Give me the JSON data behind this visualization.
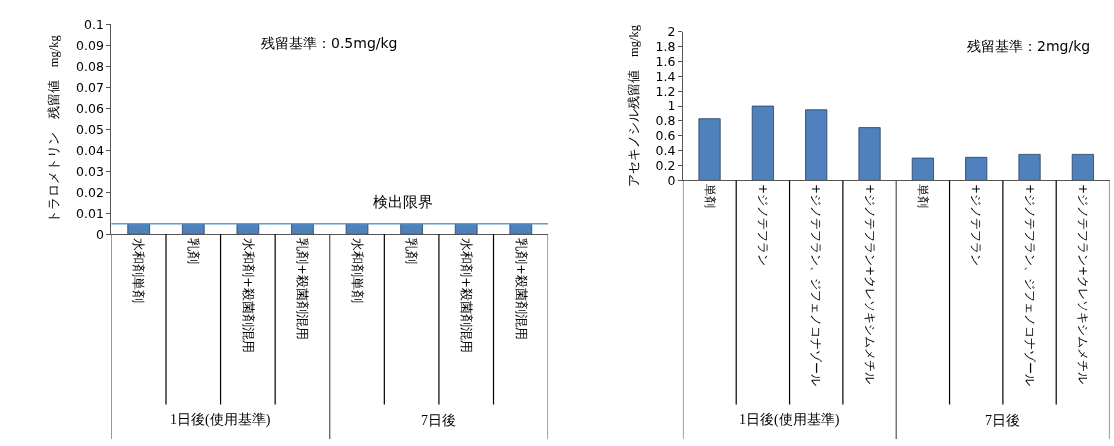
{
  "chart_data": [
    {
      "type": "bar",
      "ylabel": "トラロメトリン　残留値　mg/kg",
      "categories": [
        "水和剤単剤",
        "乳剤",
        "水和剤+殺菌剤混用",
        "乳剤+殺菌剤混用",
        "水和剤単剤",
        "乳剤",
        "水和剤+殺菌剤混用",
        "乳剤+殺菌剤混用"
      ],
      "values": [
        0.005,
        0.005,
        0.005,
        0.005,
        0.005,
        0.005,
        0.005,
        0.005
      ],
      "color": "#4f81bd",
      "ylim": [
        0,
        0.1
      ],
      "yticks": [
        0,
        0.01,
        0.02,
        0.03,
        0.04,
        0.05,
        0.06,
        0.07,
        0.08,
        0.09,
        0.1
      ],
      "ref_lines": [
        {
          "axis": "y",
          "value": 0.005,
          "label": "検出限界",
          "color": "#5b9bd5"
        }
      ],
      "annotations": [
        "残留基準：0.5mg/kg",
        "1日後(使用基準)",
        "7日後"
      ]
    },
    {
      "type": "bar",
      "ylabel": "アセキノシル残留値　mg/kg",
      "categories": [
        "単剤",
        "+ジノテフラン",
        "+ジノテフラン、ジフェノコナゾール",
        "+ジノテフラン+クレソキシムメチル",
        "単剤",
        "+ジノテフラン",
        "+ジノテフラン、ジフェノコナゾール",
        "+ジノテフラン+クレソキシムメチル"
      ],
      "values": [
        0.83,
        1.0,
        0.95,
        0.71,
        0.3,
        0.31,
        0.35,
        0.35
      ],
      "color": "#4f81bd",
      "ylim": [
        0,
        2
      ],
      "yticks": [
        0,
        0.2,
        0.4,
        0.6,
        0.8,
        1,
        1.2,
        1.4,
        1.6,
        1.8,
        2
      ],
      "annotations": [
        "残留基準：2mg/kg",
        "1日後(使用基準)",
        "7日後"
      ]
    }
  ]
}
